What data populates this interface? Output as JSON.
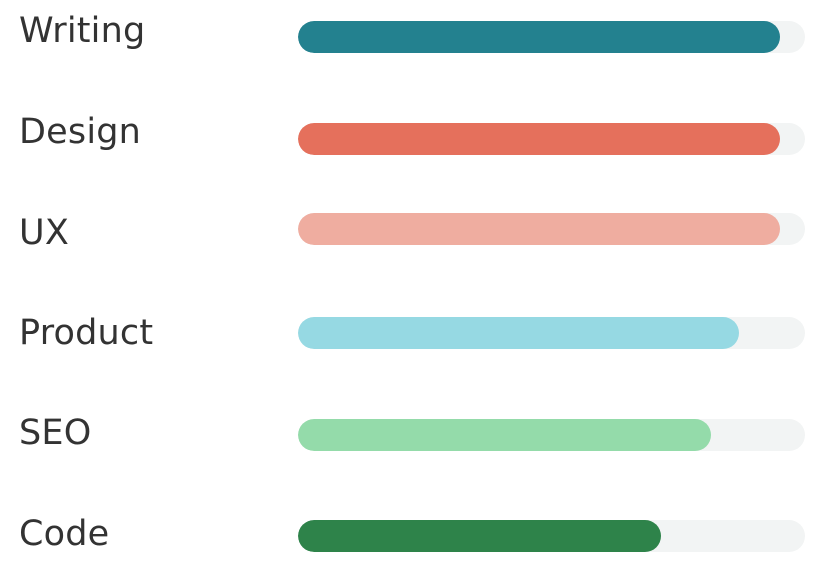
{
  "skills": [
    {
      "label": "Writing",
      "level": 0.95,
      "color": "#23818f"
    },
    {
      "label": "Design",
      "level": 0.95,
      "color": "#e5705c"
    },
    {
      "label": "UX",
      "level": 0.95,
      "color": "#efada0"
    },
    {
      "label": "Product",
      "level": 0.87,
      "color": "#96d9e3"
    },
    {
      "label": "SEO",
      "level": 0.815,
      "color": "#94dbaa"
    },
    {
      "label": "Code",
      "level": 0.715,
      "color": "#2e834a"
    }
  ]
}
